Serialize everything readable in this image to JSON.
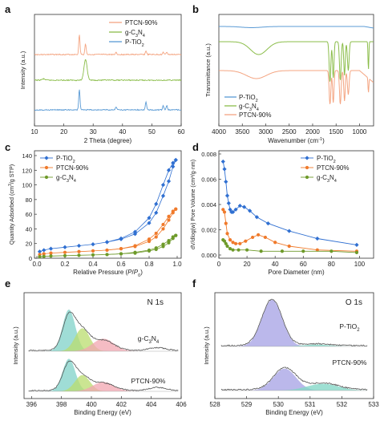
{
  "chart_data": [
    {
      "panel_label": "a",
      "type": "line",
      "xlabel": "2 Theta (degree)",
      "ylabel": "Intensity (a.u.)",
      "xlim": [
        10,
        60
      ],
      "xticks": [
        "10",
        "20",
        "30",
        "40",
        "50",
        "60"
      ],
      "legend_position": "top-right",
      "series": [
        {
          "name": "PTCN-90%",
          "color": "#f4a582",
          "peaks": [
            [
              25.3,
              1.0
            ],
            [
              27.4,
              0.55
            ],
            [
              37.8,
              0.12
            ],
            [
              48.0,
              0.18
            ],
            [
              53.9,
              0.12
            ],
            [
              55.1,
              0.12
            ]
          ]
        },
        {
          "name": "g-C3N4",
          "color": "#8bbd4a",
          "peaks": [
            [
              13.1,
              0.06
            ],
            [
              27.4,
              1.0
            ]
          ]
        },
        {
          "name": "P-TiO2",
          "color": "#5b9bd5",
          "peaks": [
            [
              25.3,
              1.0
            ],
            [
              37.8,
              0.15
            ],
            [
              48.0,
              0.4
            ],
            [
              53.9,
              0.2
            ],
            [
              55.1,
              0.2
            ]
          ]
        }
      ]
    },
    {
      "panel_label": "b",
      "type": "line",
      "xlabel": "Wavenumber (cm⁻¹)",
      "ylabel": "Transmittance (a.u.)",
      "xlim": [
        4000,
        700
      ],
      "xticks": [
        "4000",
        "3500",
        "3000",
        "2500",
        "2000",
        "1500",
        "1000"
      ],
      "legend_position": "bottom-left",
      "series": [
        {
          "name": "P-TiO2",
          "color": "#5b9bd5"
        },
        {
          "name": "g-C3N4",
          "color": "#8bbd4a"
        },
        {
          "name": "PTCN-90%",
          "color": "#f4a582"
        }
      ]
    },
    {
      "panel_label": "c",
      "type": "line",
      "xlabel": "Relative Pressure (P/P0)",
      "ylabel": "Quantity Adsorbed (cm³/g STP)",
      "xlim": [
        0,
        1.0
      ],
      "ylim": [
        0,
        140
      ],
      "xticks": [
        "0.0",
        "0.2",
        "0.4",
        "0.6",
        "0.8",
        "1.0"
      ],
      "yticks": [
        "0",
        "20",
        "40",
        "60",
        "80",
        "100",
        "120",
        "140"
      ],
      "legend_position": "top-left",
      "series": [
        {
          "name": "P-TiO2",
          "color": "#2f6fd1",
          "marker": "diamond",
          "adsorption": [
            [
              0.02,
              9
            ],
            [
              0.05,
              11
            ],
            [
              0.1,
              13
            ],
            [
              0.2,
              15
            ],
            [
              0.3,
              17
            ],
            [
              0.4,
              19
            ],
            [
              0.5,
              22
            ],
            [
              0.6,
              26
            ],
            [
              0.7,
              33
            ],
            [
              0.8,
              48
            ],
            [
              0.85,
              62
            ],
            [
              0.9,
              85
            ],
            [
              0.94,
              105
            ],
            [
              0.97,
              125
            ],
            [
              0.99,
              134
            ]
          ],
          "desorption": [
            [
              0.99,
              134
            ],
            [
              0.97,
              130
            ],
            [
              0.94,
              120
            ],
            [
              0.9,
              100
            ],
            [
              0.85,
              74
            ],
            [
              0.8,
              55
            ],
            [
              0.7,
              36
            ],
            [
              0.6,
              27
            ],
            [
              0.5,
              22
            ]
          ]
        },
        {
          "name": "PTCN-90%",
          "color": "#f07a2b",
          "marker": "circle",
          "adsorption": [
            [
              0.02,
              5
            ],
            [
              0.05,
              6
            ],
            [
              0.1,
              7
            ],
            [
              0.2,
              8
            ],
            [
              0.3,
              9
            ],
            [
              0.4,
              10
            ],
            [
              0.5,
              11
            ],
            [
              0.6,
              13
            ],
            [
              0.7,
              16
            ],
            [
              0.8,
              23
            ],
            [
              0.85,
              29
            ],
            [
              0.9,
              40
            ],
            [
              0.94,
              52
            ],
            [
              0.97,
              62
            ],
            [
              0.99,
              67
            ]
          ],
          "desorption": [
            [
              0.99,
              67
            ],
            [
              0.97,
              64
            ],
            [
              0.94,
              57
            ],
            [
              0.9,
              46
            ],
            [
              0.85,
              34
            ],
            [
              0.8,
              26
            ],
            [
              0.7,
              17
            ],
            [
              0.6,
              13
            ],
            [
              0.5,
              11
            ]
          ]
        },
        {
          "name": "g-C3N4",
          "color": "#6e9a2a",
          "marker": "circle",
          "adsorption": [
            [
              0.02,
              2
            ],
            [
              0.05,
              2.5
            ],
            [
              0.1,
              3
            ],
            [
              0.2,
              3.5
            ],
            [
              0.3,
              4
            ],
            [
              0.4,
              4.5
            ],
            [
              0.5,
              5
            ],
            [
              0.6,
              6
            ],
            [
              0.7,
              7
            ],
            [
              0.8,
              10
            ],
            [
              0.85,
              12
            ],
            [
              0.9,
              16
            ],
            [
              0.94,
              21
            ],
            [
              0.97,
              27
            ],
            [
              0.99,
              31
            ]
          ],
          "desorption": [
            [
              0.99,
              31
            ],
            [
              0.97,
              29
            ],
            [
              0.94,
              24
            ],
            [
              0.9,
              19
            ],
            [
              0.85,
              14
            ],
            [
              0.8,
              11
            ],
            [
              0.7,
              8
            ],
            [
              0.6,
              6
            ],
            [
              0.5,
              5
            ]
          ]
        }
      ]
    },
    {
      "panel_label": "d",
      "type": "line",
      "xlabel": "Pore Diameter (nm)",
      "ylabel": "dV/dlog(w) Pore Volume (cm³/g·nm)",
      "xlim": [
        0,
        110
      ],
      "ylim": [
        0,
        0.008
      ],
      "xticks": [
        "0",
        "20",
        "40",
        "60",
        "80",
        "100"
      ],
      "yticks": [
        "0.000",
        "0.002",
        "0.004",
        "0.006",
        "0.008"
      ],
      "legend_position": "top-right",
      "series": [
        {
          "name": "P-TiO2",
          "color": "#2f6fd1",
          "marker": "diamond",
          "points": [
            [
              3,
              0.0074
            ],
            [
              4,
              0.0068
            ],
            [
              5,
              0.0058
            ],
            [
              6,
              0.0047
            ],
            [
              7,
              0.0041
            ],
            [
              8,
              0.0036
            ],
            [
              9,
              0.0034
            ],
            [
              10,
              0.0034
            ],
            [
              12,
              0.0036
            ],
            [
              15,
              0.0039
            ],
            [
              18,
              0.0038
            ],
            [
              22,
              0.0035
            ],
            [
              27,
              0.003
            ],
            [
              35,
              0.0025
            ],
            [
              50,
              0.0019
            ],
            [
              70,
              0.0013
            ],
            [
              98,
              0.0008
            ]
          ]
        },
        {
          "name": "PTCN-90%",
          "color": "#f07a2b",
          "marker": "circle",
          "points": [
            [
              3,
              0.0036
            ],
            [
              4,
              0.0034
            ],
            [
              5,
              0.0025
            ],
            [
              6,
              0.0017
            ],
            [
              8,
              0.0012
            ],
            [
              10,
              0.001
            ],
            [
              12,
              0.0009
            ],
            [
              15,
              0.0009
            ],
            [
              19,
              0.0011
            ],
            [
              24,
              0.0014
            ],
            [
              28,
              0.0016
            ],
            [
              33,
              0.0014
            ],
            [
              40,
              0.001
            ],
            [
              50,
              0.0007
            ],
            [
              70,
              0.0004
            ],
            [
              98,
              0.0003
            ]
          ]
        },
        {
          "name": "g-C3N4",
          "color": "#6e9a2a",
          "marker": "circle",
          "points": [
            [
              3,
              0.0012
            ],
            [
              4,
              0.0011
            ],
            [
              5,
              0.0009
            ],
            [
              6,
              0.0007
            ],
            [
              8,
              0.0005
            ],
            [
              10,
              0.0004
            ],
            [
              14,
              0.0004
            ],
            [
              20,
              0.0004
            ],
            [
              30,
              0.0003
            ],
            [
              45,
              0.0003
            ],
            [
              60,
              0.0003
            ],
            [
              80,
              0.0003
            ],
            [
              98,
              0.0002
            ]
          ]
        }
      ]
    },
    {
      "panel_label": "e",
      "type": "area",
      "title": "N 1s",
      "xlabel": "Binding Energy (eV)",
      "ylabel": "Intensity (a.u.)",
      "xlim": [
        395.5,
        406
      ],
      "xticks": [
        "396",
        "398",
        "400",
        "402",
        "404",
        "406"
      ],
      "samples": [
        {
          "name": "g-C3N4",
          "peaks": [
            {
              "center": 398.5,
              "height": 1.0,
              "color": "#7fd1c8"
            },
            {
              "center": 399.4,
              "height": 0.55,
              "color": "#b9dc6e"
            },
            {
              "center": 400.8,
              "height": 0.3,
              "color": "#f2a6b0"
            }
          ]
        },
        {
          "name": "PTCN-90%",
          "peaks": [
            {
              "center": 398.5,
              "height": 0.7,
              "color": "#7fd1c8"
            },
            {
              "center": 399.4,
              "height": 0.35,
              "color": "#b9dc6e"
            },
            {
              "center": 400.8,
              "height": 0.2,
              "color": "#f2a6b0"
            }
          ]
        }
      ]
    },
    {
      "panel_label": "f",
      "type": "area",
      "title": "O 1s",
      "xlabel": "Binding Energy (eV)",
      "ylabel": "Intensity (a.u.)",
      "xlim": [
        528,
        533
      ],
      "xticks": [
        "528",
        "529",
        "530",
        "531",
        "532",
        "533"
      ],
      "samples": [
        {
          "name": "P-TiO2",
          "peaks": [
            {
              "center": 529.8,
              "height": 1.0,
              "color": "#aaa6e6"
            },
            {
              "center": 531.2,
              "height": 0.04,
              "color": "#86d8c8"
            }
          ]
        },
        {
          "name": "PTCN-90%",
          "peaks": [
            {
              "center": 530.2,
              "height": 0.65,
              "color": "#aaa6e6"
            },
            {
              "center": 531.4,
              "height": 0.2,
              "color": "#86d8c8"
            }
          ]
        }
      ]
    }
  ]
}
